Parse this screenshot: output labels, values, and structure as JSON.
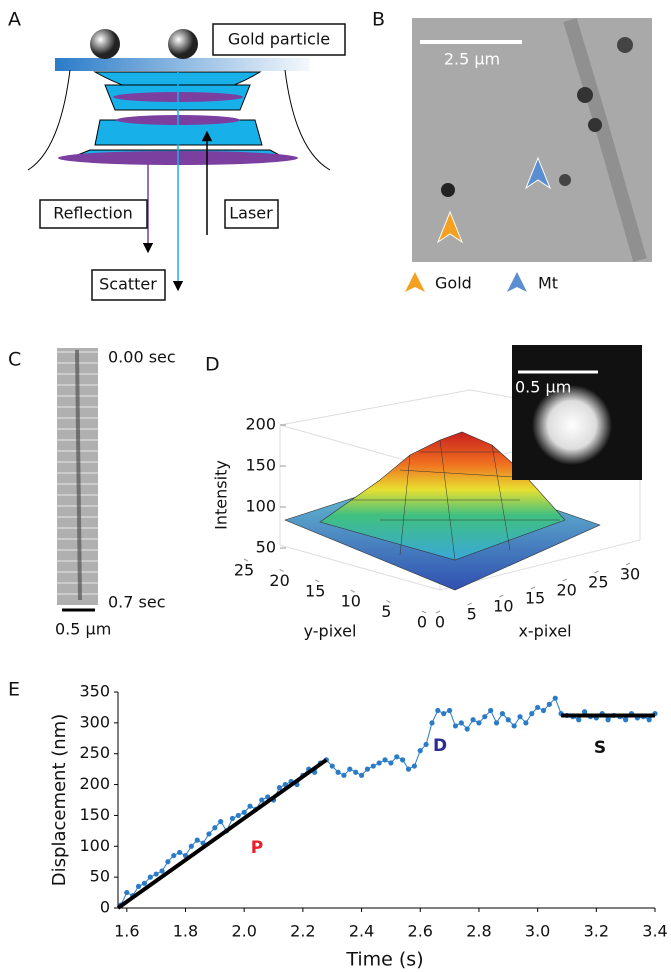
{
  "panel_labels": [
    "A",
    "B",
    "C",
    "D",
    "E"
  ],
  "diagram": {
    "gold_particle": "Gold particle",
    "reflection": "Reflection",
    "laser": "Laser",
    "scatter": "Scatter"
  },
  "micrograph": {
    "scale_bar": "2.5 μm",
    "legend": [
      "Gold",
      "Mt"
    ]
  },
  "kymograph": {
    "start": "0.00 sec",
    "end": "0.7 sec",
    "scale_bar": "0.5 μm"
  },
  "chart_data": [
    {
      "type": "surface",
      "zlabel": "Intensity",
      "xlabel": "x-pixel",
      "ylabel": "y-pixel",
      "zlim": [
        50,
        200
      ],
      "zticks": [
        50,
        100,
        150,
        200
      ],
      "xlim": [
        0,
        30
      ],
      "xticks": [
        0,
        5,
        10,
        15,
        20,
        25,
        30
      ],
      "ylim": [
        0,
        25
      ],
      "yticks": [
        0,
        5,
        10,
        15,
        20,
        25
      ],
      "inset_scale_bar": "0.5 μm"
    },
    {
      "type": "line",
      "markers": true,
      "xlabel": "Time (s)",
      "ylabel": "Displacement (nm)",
      "color": "#2a7bc8",
      "xlim": [
        1.57,
        3.4
      ],
      "xticks": [
        1.6,
        1.8,
        {
          "value": 2,
          "label": "2.0"
        },
        2.2,
        2.4,
        2.6,
        2.8,
        {
          "value": 3,
          "label": "3.0"
        },
        3.2,
        3.4
      ],
      "ylim": [
        0,
        350
      ],
      "yticks": [
        0,
        50,
        100,
        150,
        200,
        250,
        300,
        350
      ],
      "x": [
        1.58,
        1.6,
        1.62,
        1.64,
        1.66,
        1.68,
        1.7,
        1.72,
        1.74,
        1.76,
        1.78,
        1.8,
        1.82,
        1.84,
        1.86,
        1.88,
        1.9,
        1.92,
        1.94,
        1.96,
        1.98,
        2.0,
        2.02,
        2.04,
        2.06,
        2.08,
        2.1,
        2.12,
        2.14,
        2.16,
        2.18,
        2.2,
        2.22,
        2.24,
        2.26,
        2.28,
        2.3,
        2.32,
        2.34,
        2.36,
        2.38,
        2.4,
        2.42,
        2.44,
        2.46,
        2.48,
        2.5,
        2.52,
        2.54,
        2.56,
        2.58,
        2.6,
        2.62,
        2.64,
        2.66,
        2.68,
        2.7,
        2.72,
        2.74,
        2.76,
        2.78,
        2.8,
        2.82,
        2.84,
        2.86,
        2.88,
        2.9,
        2.92,
        2.94,
        2.96,
        2.98,
        3.0,
        3.02,
        3.04,
        3.06,
        3.08,
        3.1,
        3.12,
        3.14,
        3.16,
        3.18,
        3.2,
        3.22,
        3.24,
        3.26,
        3.28,
        3.3,
        3.32,
        3.34,
        3.36,
        3.38,
        3.4
      ],
      "values": [
        5,
        25,
        20,
        35,
        40,
        50,
        55,
        60,
        75,
        85,
        90,
        85,
        100,
        110,
        105,
        120,
        130,
        140,
        125,
        145,
        150,
        155,
        165,
        160,
        175,
        180,
        175,
        195,
        200,
        205,
        200,
        215,
        225,
        220,
        235,
        240,
        230,
        220,
        215,
        225,
        220,
        215,
        225,
        230,
        235,
        240,
        235,
        245,
        240,
        225,
        230,
        255,
        265,
        300,
        320,
        315,
        320,
        295,
        300,
        290,
        305,
        300,
        310,
        320,
        300,
        315,
        305,
        295,
        310,
        300,
        315,
        325,
        320,
        330,
        340,
        315,
        312,
        310,
        305,
        318,
        310,
        308,
        315,
        305,
        312,
        310,
        305,
        315,
        308,
        310,
        305,
        315
      ],
      "fit_color": "#000000",
      "fit_lines": [
        {
          "x": [
            1.57,
            2.28
          ],
          "values": [
            0,
            240
          ]
        },
        {
          "x": [
            3.08,
            3.4
          ],
          "values": [
            312,
            312
          ]
        }
      ],
      "annotations": [
        {
          "text": "P",
          "color": "#e8202a"
        },
        {
          "text": "D",
          "color": "#2b2e8f"
        },
        {
          "text": "S",
          "color": "#111111"
        }
      ]
    }
  ]
}
